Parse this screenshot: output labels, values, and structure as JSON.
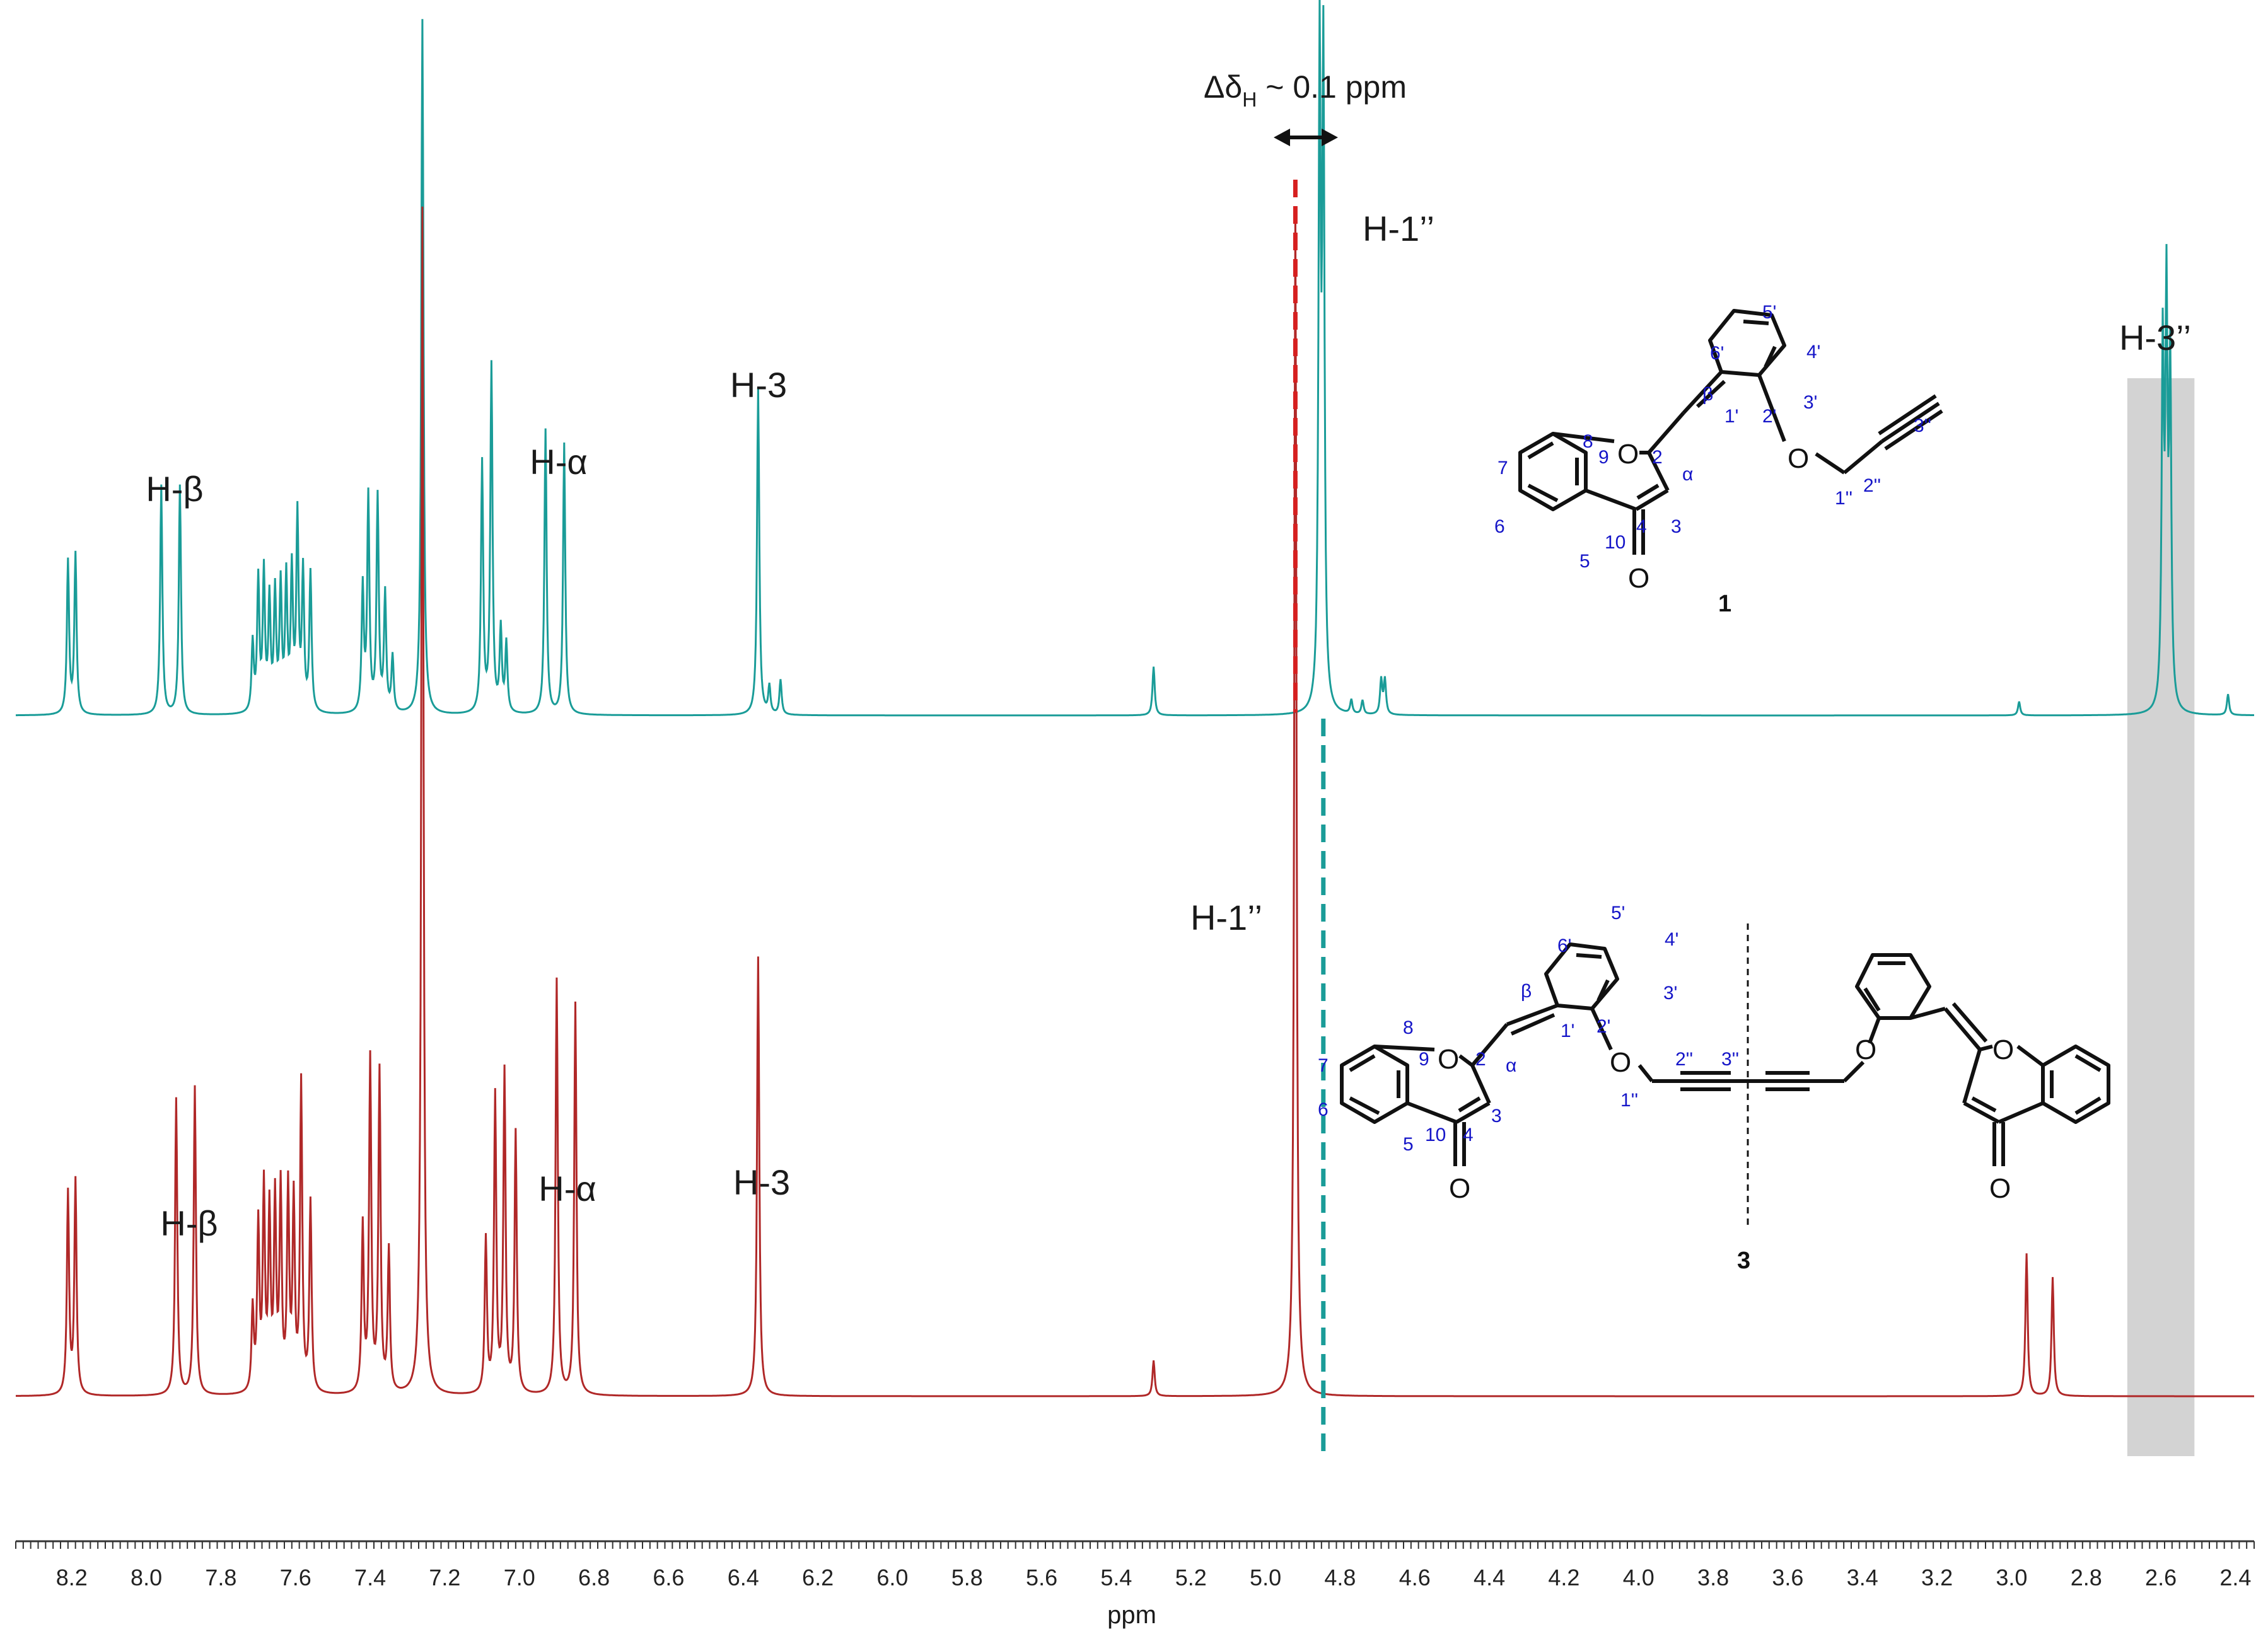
{
  "chart_data": {
    "type": "line",
    "xlabel": "ppm",
    "xlim": [
      8.35,
      2.35
    ],
    "x_reversed": true,
    "ticks": [
      "8.2",
      "8.0",
      "7.8",
      "7.6",
      "7.4",
      "7.2",
      "7.0",
      "6.8",
      "6.6",
      "6.4",
      "6.2",
      "6.0",
      "5.8",
      "5.6",
      "5.4",
      "5.2",
      "5.0",
      "4.8",
      "4.6",
      "4.4",
      "4.2",
      "4.0",
      "3.8",
      "3.6",
      "3.4",
      "3.2",
      "3.0",
      "2.8",
      "2.6",
      "2.4"
    ],
    "series": [
      {
        "compound": "1",
        "color": "#1a9c98",
        "peaks": [
          {
            "ppm": 8.21,
            "h": 0.22
          },
          {
            "ppm": 8.19,
            "h": 0.23
          },
          {
            "ppm": 7.96,
            "h": 0.33
          },
          {
            "ppm": 7.91,
            "h": 0.33
          },
          {
            "ppm": 7.715,
            "h": 0.1
          },
          {
            "ppm": 7.7,
            "h": 0.19
          },
          {
            "ppm": 7.685,
            "h": 0.2
          },
          {
            "ppm": 7.67,
            "h": 0.16
          },
          {
            "ppm": 7.655,
            "h": 0.17
          },
          {
            "ppm": 7.64,
            "h": 0.18
          },
          {
            "ppm": 7.625,
            "h": 0.19
          },
          {
            "ppm": 7.61,
            "h": 0.2
          },
          {
            "ppm": 7.595,
            "h": 0.28
          },
          {
            "ppm": 7.58,
            "h": 0.2
          },
          {
            "ppm": 7.56,
            "h": 0.2
          },
          {
            "ppm": 7.42,
            "h": 0.18
          },
          {
            "ppm": 7.405,
            "h": 0.31
          },
          {
            "ppm": 7.38,
            "h": 0.31
          },
          {
            "ppm": 7.36,
            "h": 0.17
          },
          {
            "ppm": 7.34,
            "h": 0.08
          },
          {
            "ppm": 7.26,
            "h": 1.0
          },
          {
            "ppm": 7.1,
            "h": 0.36
          },
          {
            "ppm": 7.075,
            "h": 0.5
          },
          {
            "ppm": 7.05,
            "h": 0.12
          },
          {
            "ppm": 7.035,
            "h": 0.1
          },
          {
            "ppm": 6.93,
            "h": 0.41
          },
          {
            "ppm": 6.88,
            "h": 0.39
          },
          {
            "ppm": 6.36,
            "h": 0.47
          },
          {
            "ppm": 6.33,
            "h": 0.04
          },
          {
            "ppm": 6.3,
            "h": 0.05
          },
          {
            "ppm": 5.3,
            "h": 0.07
          },
          {
            "ppm": 4.855,
            "h": 0.93
          },
          {
            "ppm": 4.845,
            "h": 0.92
          },
          {
            "ppm": 4.77,
            "h": 0.02
          },
          {
            "ppm": 4.74,
            "h": 0.02
          },
          {
            "ppm": 4.69,
            "h": 0.05
          },
          {
            "ppm": 4.68,
            "h": 0.05
          },
          {
            "ppm": 2.98,
            "h": 0.02
          },
          {
            "ppm": 2.595,
            "h": 0.51
          },
          {
            "ppm": 2.585,
            "h": 0.57
          },
          {
            "ppm": 2.575,
            "h": 0.48
          },
          {
            "ppm": 2.42,
            "h": 0.03
          }
        ]
      },
      {
        "compound": "3",
        "color": "#b02828",
        "peaks": [
          {
            "ppm": 8.21,
            "h": 0.17
          },
          {
            "ppm": 8.19,
            "h": 0.18
          },
          {
            "ppm": 7.92,
            "h": 0.25
          },
          {
            "ppm": 7.87,
            "h": 0.26
          },
          {
            "ppm": 7.715,
            "h": 0.07
          },
          {
            "ppm": 7.7,
            "h": 0.14
          },
          {
            "ppm": 7.685,
            "h": 0.17
          },
          {
            "ppm": 7.67,
            "h": 0.15
          },
          {
            "ppm": 7.655,
            "h": 0.16
          },
          {
            "ppm": 7.64,
            "h": 0.17
          },
          {
            "ppm": 7.62,
            "h": 0.17
          },
          {
            "ppm": 7.605,
            "h": 0.16
          },
          {
            "ppm": 7.585,
            "h": 0.26
          },
          {
            "ppm": 7.56,
            "h": 0.16
          },
          {
            "ppm": 7.42,
            "h": 0.14
          },
          {
            "ppm": 7.4,
            "h": 0.28
          },
          {
            "ppm": 7.375,
            "h": 0.27
          },
          {
            "ppm": 7.35,
            "h": 0.12
          },
          {
            "ppm": 7.26,
            "h": 1.0
          },
          {
            "ppm": 7.09,
            "h": 0.13
          },
          {
            "ppm": 7.065,
            "h": 0.25
          },
          {
            "ppm": 7.04,
            "h": 0.27
          },
          {
            "ppm": 7.01,
            "h": 0.22
          },
          {
            "ppm": 6.9,
            "h": 0.35
          },
          {
            "ppm": 6.85,
            "h": 0.33
          },
          {
            "ppm": 6.36,
            "h": 0.37
          },
          {
            "ppm": 5.3,
            "h": 0.03
          },
          {
            "ppm": 4.92,
            "h": 1.0
          },
          {
            "ppm": 2.96,
            "h": 0.12
          },
          {
            "ppm": 2.89,
            "h": 0.1
          }
        ]
      }
    ],
    "shaded_region_ppm": [
      2.69,
      2.51
    ],
    "marker_lines": [
      {
        "ppm": 4.92,
        "color": "#d62020",
        "style": "dashed"
      },
      {
        "ppm": 4.845,
        "color": "#1a9c98",
        "style": "dashed"
      }
    ],
    "delta_annotation": "ΔδH ~ 0.1 ppm",
    "delta_main": "Δδ",
    "delta_sub": "H",
    "delta_rest": " ~ 0.1 ppm",
    "labels_top": {
      "h_beta": "H-β",
      "h_alpha": "H-α",
      "h_3": "H-3",
      "h_1pp": "H-1’’",
      "h_3pp": "H-3’’"
    },
    "labels_bottom": {
      "h_beta": "H-β",
      "h_alpha": "H-α",
      "h_3": "H-3",
      "h_1pp": "H-1’’"
    }
  },
  "structure_1": {
    "compound_number": "1",
    "atoms": {
      "O_ring": "O",
      "O_carbonyl": "O",
      "O_ether": "O"
    },
    "numbers": [
      "8",
      "9",
      "7",
      "6",
      "5",
      "10",
      "4",
      "2",
      "3",
      "α",
      "β",
      "1'",
      "2'",
      "6'",
      "5'",
      "4'",
      "3'",
      "1''",
      "2''",
      "3''"
    ]
  },
  "structure_3": {
    "compound_number": "3",
    "atoms": {
      "O_ring": "O",
      "O_carbonyl": "O",
      "O_ether": "O",
      "O_ether_r": "O",
      "O_ring_r": "O",
      "O_carbonyl_r": "O"
    },
    "numbers": [
      "8",
      "9",
      "7",
      "6",
      "5",
      "10",
      "4",
      "2",
      "3",
      "α",
      "β",
      "1'",
      "2'",
      "6'",
      "5'",
      "4'",
      "3'",
      "1''",
      "2''",
      "3''"
    ]
  }
}
